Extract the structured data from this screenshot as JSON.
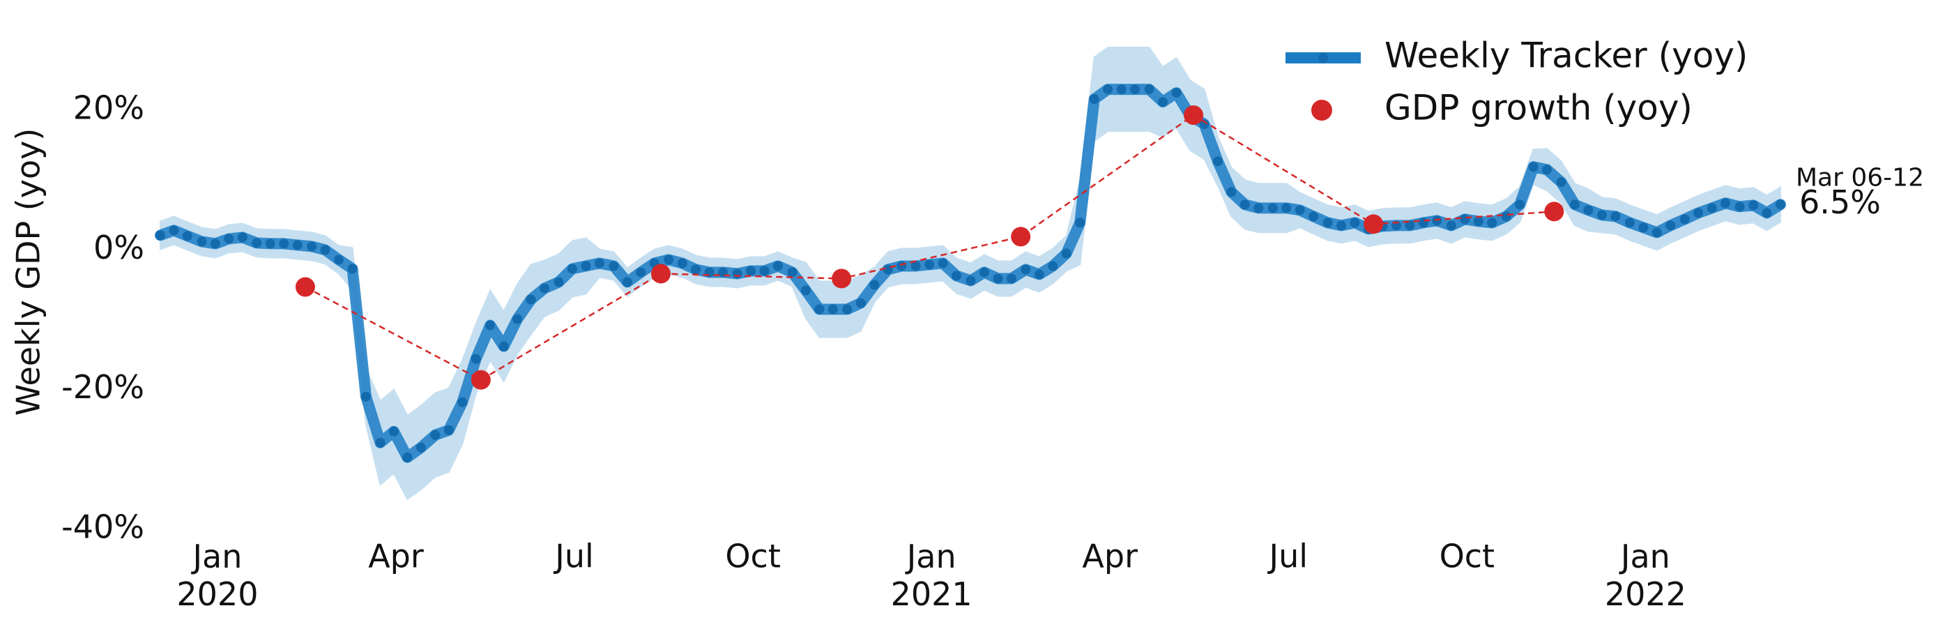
{
  "chart_data": {
    "type": "line",
    "y_label": "Weekly GDP (yoy)",
    "xlim": [
      2019.92,
      2022.19
    ],
    "xticks": [
      {
        "value": 2020.0,
        "label": "Jan\n2020"
      },
      {
        "value": 2020.25,
        "label": "Apr"
      },
      {
        "value": 2020.5,
        "label": "Jul"
      },
      {
        "value": 2020.75,
        "label": "Oct"
      },
      {
        "value": 2021.0,
        "label": "Jan\n2021"
      },
      {
        "value": 2021.25,
        "label": "Apr"
      },
      {
        "value": 2021.5,
        "label": "Jul"
      },
      {
        "value": 2021.75,
        "label": "Oct"
      },
      {
        "value": 2022.0,
        "label": "Jan\n2022"
      }
    ],
    "ylim": [
      -40,
      30
    ],
    "yticks": [
      {
        "value": -40,
        "label": "-40%"
      },
      {
        "value": -20,
        "label": "-20%"
      },
      {
        "value": 0,
        "label": "0%"
      },
      {
        "value": 20,
        "label": "20%"
      }
    ],
    "grid": false,
    "legend": "upper right",
    "band_color": "#c6dff0",
    "series": [
      {
        "name": "Weekly Tracker (yoy)",
        "color": "#1b7cc4",
        "x": [
          2019.92,
          2019.939,
          2019.958,
          2019.978,
          2019.997,
          2020.016,
          2020.035,
          2020.055,
          2020.074,
          2020.093,
          2020.112,
          2020.132,
          2020.151,
          2020.17,
          2020.189,
          2020.208,
          2020.228,
          2020.247,
          2020.266,
          2020.285,
          2020.305,
          2020.324,
          2020.343,
          2020.362,
          2020.382,
          2020.401,
          2020.42,
          2020.439,
          2020.458,
          2020.478,
          2020.497,
          2020.516,
          2020.535,
          2020.555,
          2020.574,
          2020.593,
          2020.612,
          2020.632,
          2020.651,
          2020.67,
          2020.689,
          2020.708,
          2020.728,
          2020.747,
          2020.766,
          2020.785,
          2020.805,
          2020.824,
          2020.843,
          2020.862,
          2020.882,
          2020.901,
          2020.92,
          2020.939,
          2020.958,
          2020.978,
          2020.997,
          2021.016,
          2021.035,
          2021.055,
          2021.074,
          2021.093,
          2021.112,
          2021.132,
          2021.151,
          2021.17,
          2021.189,
          2021.208,
          2021.228,
          2021.247,
          2021.266,
          2021.285,
          2021.305,
          2021.324,
          2021.343,
          2021.362,
          2021.382,
          2021.401,
          2021.42,
          2021.439,
          2021.458,
          2021.478,
          2021.497,
          2021.516,
          2021.535,
          2021.555,
          2021.574,
          2021.593,
          2021.612,
          2021.632,
          2021.651,
          2021.67,
          2021.689,
          2021.708,
          2021.728,
          2021.747,
          2021.766,
          2021.785,
          2021.805,
          2021.824,
          2021.843,
          2021.862,
          2021.882,
          2021.901,
          2021.92,
          2021.939,
          2021.958,
          2021.978,
          2021.997,
          2022.016,
          2022.035,
          2022.055,
          2022.074,
          2022.093,
          2022.112,
          2022.132,
          2022.151,
          2022.17,
          2022.189
        ],
        "values": [
          2.1,
          2.8,
          2,
          1.2,
          0.9,
          1.6,
          1.8,
          1,
          0.9,
          0.9,
          0.7,
          0.5,
          0,
          -1.4,
          -2.7,
          -21,
          -27.6,
          -26,
          -29.7,
          -28.3,
          -26.5,
          -25.8,
          -21.8,
          -15.6,
          -10.8,
          -13.8,
          -9.9,
          -7.1,
          -5.5,
          -4.6,
          -2.7,
          -2.3,
          -1.9,
          -2.3,
          -4.6,
          -3.2,
          -1.9,
          -1.4,
          -1.9,
          -2.8,
          -3.2,
          -3.2,
          -3.4,
          -3,
          -3,
          -2.3,
          -3.2,
          -5.8,
          -8.5,
          -8.5,
          -8.5,
          -7.6,
          -5,
          -2.8,
          -2.3,
          -2.3,
          -2.1,
          -1.9,
          -3.7,
          -4.4,
          -3.2,
          -4.1,
          -4.1,
          -2.8,
          -3.5,
          -2.3,
          -0.5,
          3.9,
          21.6,
          23,
          23,
          23,
          23,
          21.2,
          22.5,
          19.3,
          18,
          12.7,
          8.3,
          6.5,
          6,
          6,
          6,
          5.7,
          4.8,
          3.9,
          3.5,
          3.9,
          3,
          3.4,
          3.5,
          3.5,
          3.9,
          4.2,
          3.5,
          4.4,
          4.1,
          3.9,
          4.8,
          6.5,
          11.9,
          11.5,
          9.7,
          6.5,
          5.7,
          5,
          4.8,
          3.9,
          3.2,
          2.5,
          3.5,
          4.4,
          5.3,
          6,
          6.7,
          6.2,
          6.4,
          5.3,
          6.5
        ],
        "band": [
          2,
          2,
          2,
          2,
          2,
          2,
          2,
          2,
          2,
          2,
          2,
          2,
          2,
          2,
          3,
          4,
          6,
          6,
          6,
          6,
          6,
          6,
          6,
          5,
          5,
          5,
          5,
          5,
          4,
          4,
          4,
          4,
          2,
          2,
          2,
          2,
          2,
          2,
          2,
          2,
          2,
          2,
          2,
          2,
          2,
          2,
          2,
          4,
          4,
          4,
          4,
          4,
          2.5,
          2.5,
          2.5,
          2.5,
          2.5,
          2.5,
          2.5,
          2.5,
          2.5,
          2.5,
          2.5,
          2.5,
          2.5,
          2.5,
          2.5,
          6,
          6,
          6,
          6,
          6,
          6,
          5,
          5,
          5,
          5,
          3.5,
          3.5,
          3.5,
          3.5,
          3.5,
          3.5,
          2.5,
          2.5,
          2.5,
          2.5,
          2.5,
          2.5,
          2.5,
          2.5,
          2.5,
          2.5,
          2.5,
          2.5,
          2.5,
          2.5,
          2.5,
          2.5,
          2.5,
          2.5,
          3,
          3,
          3,
          3,
          2.5,
          2.5,
          2.5,
          2.5,
          2.5,
          2.5,
          2.5,
          2.5,
          2.5,
          2.5,
          2.5,
          2.5,
          2.5,
          2.5
        ]
      },
      {
        "name": "GDP growth (yoy)",
        "color": "#d62728",
        "x": [
          2020.123,
          2020.369,
          2020.621,
          2020.874,
          2021.125,
          2021.367,
          2021.619,
          2021.872
        ],
        "values": [
          -5.3,
          -18.6,
          -3.4,
          -4.1,
          1.9,
          19.3,
          3.7,
          5.5
        ]
      }
    ],
    "annotation": {
      "text": "Mar 06-12",
      "value": 6.5,
      "value_label": "6.5%"
    }
  }
}
